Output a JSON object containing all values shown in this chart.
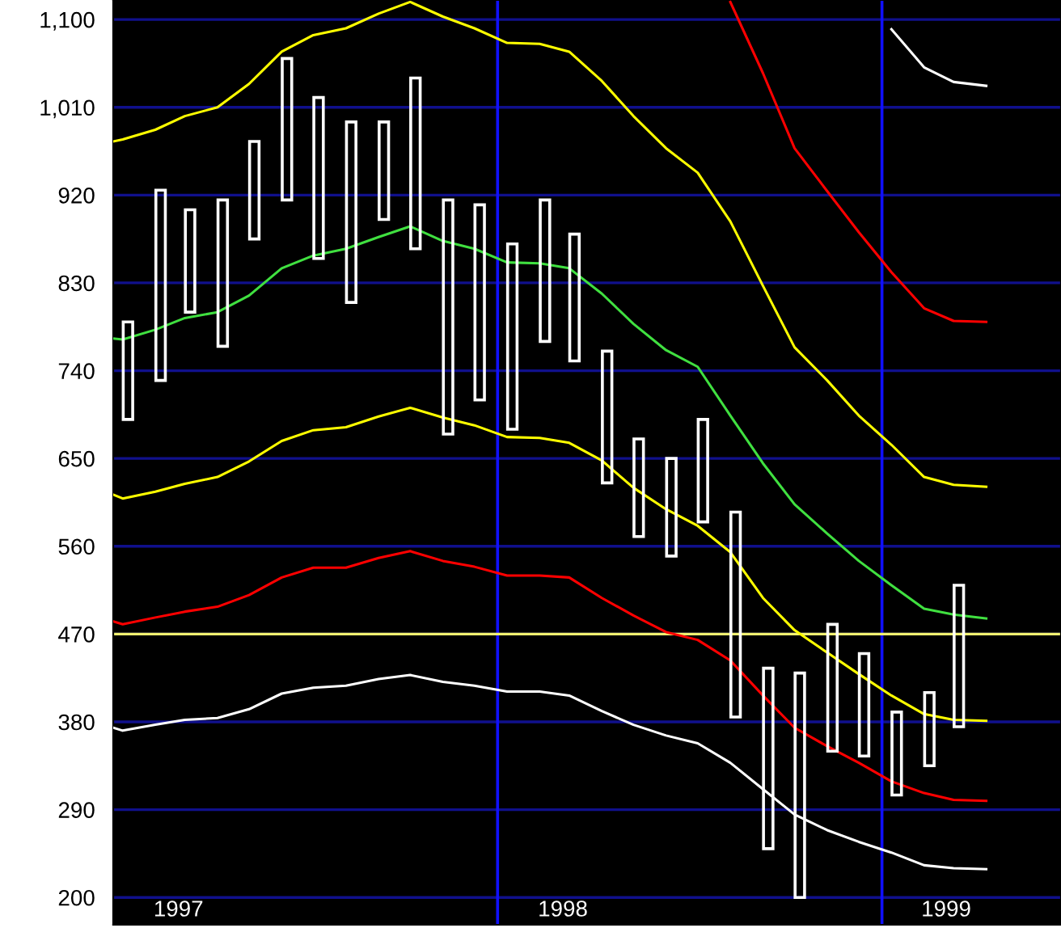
{
  "chart_data": {
    "type": "line",
    "xlim": [
      "1997-01-01",
      "1999-06-20"
    ],
    "xticks": [
      {
        "value": "1997-03-04",
        "label": "1997"
      },
      {
        "value": "1998-03-04",
        "label": "1998"
      },
      {
        "value": "1999-03-03",
        "label": "1999"
      }
    ],
    "ylim": [
      172,
      1120
    ],
    "yticks": [
      200,
      290,
      380,
      470,
      560,
      650,
      740,
      830,
      920,
      {
        "value": 1010,
        "label": "1,010"
      },
      {
        "value": 1100,
        "label": "1,100"
      }
    ],
    "grid": "y",
    "ref_lines": [
      {
        "axis": "x",
        "value": "1998-01-01",
        "color": "#1010ff"
      },
      {
        "axis": "x",
        "value": "1999-01-01",
        "color": "#1010ff"
      },
      {
        "axis": "y",
        "value": 470,
        "color": "#f0f070"
      }
    ],
    "x": [
      "1997-01-01",
      "1997-01-10",
      "1997-02-10",
      "1997-03-10",
      "1997-04-10",
      "1997-05-10",
      "1997-06-10",
      "1997-07-10",
      "1997-08-10",
      "1997-09-10",
      "1997-10-10",
      "1997-11-10",
      "1997-12-10",
      "1998-01-10",
      "1998-02-10",
      "1998-03-10",
      "1998-04-10",
      "1998-05-10",
      "1998-06-10",
      "1998-07-10",
      "1998-08-10",
      "1998-09-10",
      "1998-10-10",
      "1998-11-10",
      "1998-12-10",
      "1999-01-10",
      "1999-02-10",
      "1999-03-10",
      "1999-04-10"
    ],
    "series": [
      {
        "type": "bar",
        "color": "#ffffff",
        "x": [
          "1997-01-15",
          "1997-02-15",
          "1997-03-15",
          "1997-04-15",
          "1997-05-15",
          "1997-06-15",
          "1997-07-15",
          "1997-08-15",
          "1997-09-15",
          "1997-10-15",
          "1997-11-15",
          "1997-12-15",
          "1998-01-15",
          "1998-02-15",
          "1998-03-15",
          "1998-04-15",
          "1998-05-15",
          "1998-06-15",
          "1998-07-15",
          "1998-08-15",
          "1998-09-15",
          "1998-10-15",
          "1998-11-15",
          "1998-12-15",
          "1999-01-15",
          "1999-02-15",
          "1999-03-15"
        ],
        "base": [
          690,
          730,
          800,
          765,
          875,
          915,
          855,
          810,
          895,
          865,
          675,
          710,
          680,
          770,
          750,
          625,
          570,
          550,
          585,
          385,
          250,
          200,
          350,
          345,
          305,
          335,
          375
        ],
        "values": [
          100,
          195,
          105,
          150,
          100,
          145,
          165,
          185,
          100,
          175,
          240,
          200,
          190,
          145,
          130,
          135,
          100,
          100,
          105,
          210,
          185,
          230,
          130,
          105,
          85,
          75,
          145
        ]
      },
      {
        "color": "#ffffff",
        "x": [
          "1999-01-10",
          "1999-02-10",
          "1999-03-10",
          "1999-04-10"
        ],
        "values": [
          1090,
          1051,
          1036,
          1032
        ]
      },
      {
        "color": "#ff0000",
        "x": [
          "1998-08-10",
          "1998-09-10",
          "1998-10-10",
          "1998-11-10",
          "1998-12-10",
          "1999-01-10",
          "1999-02-10",
          "1999-03-10",
          "1999-04-10"
        ],
        "values": [
          1118,
          1045,
          968,
          924,
          882,
          841,
          804,
          791,
          790
        ]
      },
      {
        "color": "#ffff00",
        "values": [
          975,
          977,
          987,
          1001,
          1010,
          1034,
          1067,
          1084,
          1091,
          1106,
          1118,
          1103,
          1091,
          1076,
          1075,
          1067,
          1037,
          1001,
          968,
          943,
          893,
          827,
          764,
          730,
          694,
          664,
          631,
          623,
          621
        ]
      },
      {
        "color": "#40e040",
        "values": [
          773,
          772,
          782,
          794,
          800,
          817,
          845,
          858,
          865,
          877,
          888,
          873,
          865,
          851,
          850,
          845,
          819,
          788,
          761,
          744,
          694,
          645,
          603,
          573,
          545,
          520,
          496,
          490,
          486
        ]
      },
      {
        "color": "#ffff00",
        "values": [
          613,
          609,
          616,
          624,
          631,
          647,
          668,
          679,
          682,
          693,
          702,
          692,
          684,
          672,
          671,
          666,
          648,
          620,
          598,
          581,
          554,
          507,
          474,
          451,
          429,
          407,
          388,
          382,
          381
        ]
      },
      {
        "color": "#ff0000",
        "values": [
          483,
          480,
          487,
          493,
          498,
          510,
          528,
          538,
          538,
          548,
          555,
          545,
          539,
          530,
          530,
          528,
          507,
          489,
          472,
          464,
          443,
          407,
          374,
          355,
          338,
          319,
          307,
          300,
          299
        ]
      },
      {
        "color": "#ffffff",
        "values": [
          374,
          371,
          377,
          382,
          384,
          393,
          409,
          415,
          417,
          424,
          428,
          421,
          417,
          411,
          411,
          407,
          391,
          377,
          366,
          358,
          338,
          311,
          285,
          269,
          257,
          246,
          233,
          230,
          229
        ]
      }
    ]
  }
}
